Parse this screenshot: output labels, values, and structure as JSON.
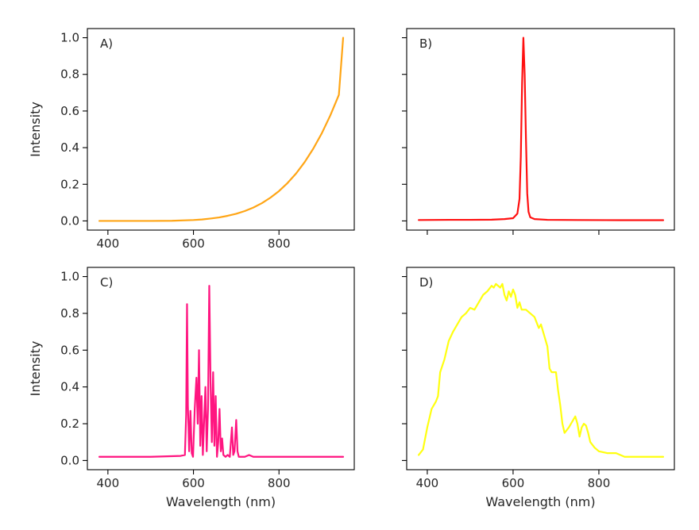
{
  "chart_data": [
    {
      "panel": "A)",
      "type": "line",
      "color": "#ffa515",
      "xlim": [
        352,
        976
      ],
      "ylim": [
        -0.05,
        1.05
      ],
      "xticks": [
        "400",
        "600",
        "800"
      ],
      "yticks": [
        "0.0",
        "0.2",
        "0.4",
        "0.6",
        "0.8",
        "1.0"
      ],
      "xlabel": "",
      "ylabel": "Intensity",
      "series": [
        {
          "x": [
            380,
            400,
            450,
            500,
            550,
            600,
            620,
            640,
            660,
            680,
            700,
            720,
            740,
            760,
            780,
            800,
            820,
            840,
            860,
            880,
            900,
            920,
            940,
            950
          ],
          "y": [
            0,
            0,
            0,
            0,
            0.001,
            0.005,
            0.008,
            0.013,
            0.019,
            0.028,
            0.039,
            0.054,
            0.073,
            0.097,
            0.127,
            0.163,
            0.207,
            0.259,
            0.321,
            0.394,
            0.478,
            0.576,
            0.688,
            1.0
          ]
        }
      ]
    },
    {
      "panel": "B)",
      "type": "line",
      "color": "#ff1010",
      "xlim": [
        352,
        976
      ],
      "ylim": [
        -0.05,
        1.05
      ],
      "xticks": [],
      "yticks": [],
      "xlabel": "",
      "ylabel": "",
      "series": [
        {
          "x": [
            380,
            450,
            500,
            550,
            580,
            600,
            610,
            615,
            618,
            621,
            624,
            627,
            630,
            633,
            636,
            640,
            650,
            680,
            750,
            850,
            950
          ],
          "y": [
            0.005,
            0.006,
            0.006,
            0.007,
            0.01,
            0.015,
            0.04,
            0.12,
            0.35,
            0.75,
            1.0,
            0.8,
            0.45,
            0.15,
            0.05,
            0.02,
            0.01,
            0.006,
            0.005,
            0.004,
            0.004
          ]
        }
      ]
    },
    {
      "panel": "C)",
      "type": "line",
      "color": "#ff1580",
      "xlim": [
        352,
        976
      ],
      "ylim": [
        -0.05,
        1.05
      ],
      "xticks": [
        "400",
        "600",
        "800"
      ],
      "yticks": [
        "0.0",
        "0.2",
        "0.4",
        "0.6",
        "0.8",
        "1.0"
      ],
      "xlabel": "Wavelength (nm)",
      "ylabel": "Intensity",
      "series": [
        {
          "x": [
            380,
            500,
            570,
            580,
            583,
            585,
            587,
            590,
            593,
            596,
            599,
            603,
            607,
            610,
            613,
            616,
            619,
            622,
            625,
            628,
            631,
            634,
            637,
            640,
            643,
            646,
            649,
            652,
            655,
            658,
            661,
            664,
            667,
            670,
            675,
            680,
            685,
            690,
            693,
            696,
            700,
            703,
            706,
            710,
            720,
            730,
            740,
            800,
            950
          ],
          "y": [
            0.02,
            0.02,
            0.025,
            0.03,
            0.25,
            0.85,
            0.3,
            0.05,
            0.27,
            0.04,
            0.02,
            0.28,
            0.45,
            0.2,
            0.6,
            0.08,
            0.35,
            0.03,
            0.22,
            0.4,
            0.05,
            0.28,
            0.95,
            0.42,
            0.1,
            0.48,
            0.08,
            0.35,
            0.02,
            0.1,
            0.28,
            0.05,
            0.12,
            0.03,
            0.02,
            0.03,
            0.02,
            0.18,
            0.03,
            0.05,
            0.22,
            0.05,
            0.02,
            0.02,
            0.02,
            0.03,
            0.02,
            0.02,
            0.02
          ]
        }
      ]
    },
    {
      "panel": "D)",
      "type": "line",
      "color": "#ffff10",
      "xlim": [
        352,
        976
      ],
      "ylim": [
        -0.05,
        1.05
      ],
      "xticks": [
        "400",
        "600",
        "800"
      ],
      "yticks": [],
      "xlabel": "Wavelength (nm)",
      "ylabel": "",
      "series": [
        {
          "x": [
            380,
            390,
            400,
            410,
            420,
            425,
            430,
            440,
            450,
            460,
            470,
            480,
            490,
            500,
            510,
            520,
            530,
            540,
            550,
            555,
            560,
            570,
            575,
            580,
            585,
            590,
            595,
            600,
            605,
            610,
            615,
            620,
            630,
            640,
            650,
            655,
            660,
            665,
            670,
            680,
            685,
            690,
            700,
            705,
            710,
            715,
            720,
            730,
            740,
            745,
            750,
            755,
            760,
            765,
            770,
            775,
            780,
            790,
            800,
            820,
            840,
            860,
            900,
            950
          ],
          "y": [
            0.03,
            0.06,
            0.18,
            0.28,
            0.32,
            0.35,
            0.48,
            0.55,
            0.65,
            0.7,
            0.74,
            0.78,
            0.8,
            0.83,
            0.82,
            0.86,
            0.9,
            0.92,
            0.95,
            0.94,
            0.96,
            0.94,
            0.96,
            0.9,
            0.87,
            0.92,
            0.89,
            0.93,
            0.9,
            0.83,
            0.86,
            0.82,
            0.82,
            0.8,
            0.78,
            0.75,
            0.72,
            0.74,
            0.7,
            0.62,
            0.5,
            0.48,
            0.48,
            0.38,
            0.3,
            0.2,
            0.15,
            0.18,
            0.22,
            0.24,
            0.2,
            0.13,
            0.18,
            0.2,
            0.19,
            0.15,
            0.1,
            0.07,
            0.05,
            0.04,
            0.04,
            0.02,
            0.02,
            0.02
          ]
        }
      ]
    }
  ]
}
